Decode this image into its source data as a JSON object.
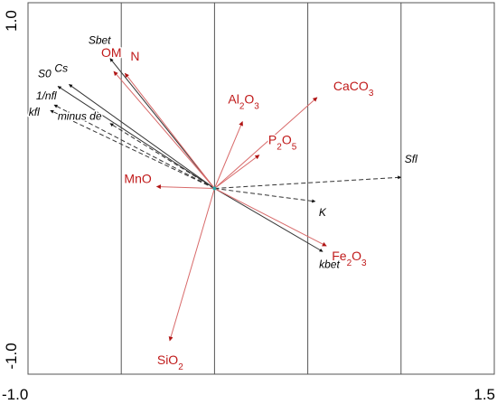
{
  "chart_data": {
    "type": "biplot",
    "title": "",
    "xlabel": "",
    "ylabel": "",
    "xlim": [
      -1.0,
      1.5
    ],
    "ylim": [
      -1.0,
      1.0
    ],
    "x_tick_labels": [
      {
        "value": -1.0,
        "label": "-1.0"
      },
      {
        "value": 1.5,
        "label": "1.5"
      }
    ],
    "y_tick_labels": [
      {
        "value": 1.0,
        "label": "1.0"
      },
      {
        "value": -1.0,
        "label": "-1.0"
      }
    ],
    "gridlines_x": [
      -0.5,
      0.0,
      0.5,
      1.0
    ],
    "grid": true,
    "colors": {
      "response": "#c01a1a",
      "environmental": "#000000",
      "axis": "#555555"
    },
    "response_vectors": [
      {
        "label": "OM",
        "x": -0.54,
        "y": 0.63
      },
      {
        "label": "N",
        "x": -0.48,
        "y": 0.62
      },
      {
        "label": "CaCO",
        "sub": "3",
        "x": 0.55,
        "y": 0.49
      },
      {
        "label": "Al",
        "sub": "2",
        "suffix": "O",
        "sub2": "3",
        "x": 0.15,
        "y": 0.36
      },
      {
        "label": "P",
        "sub": "2",
        "suffix": "O",
        "sub2": "5",
        "x": 0.24,
        "y": 0.18
      },
      {
        "label": "MnO",
        "x": -0.31,
        "y": 0.01
      },
      {
        "label": "Fe",
        "sub": "2",
        "suffix": "O",
        "sub2": "3",
        "x": 0.6,
        "y": -0.31
      },
      {
        "label": "SiO",
        "sub": "2",
        "x": -0.24,
        "y": -0.82
      }
    ],
    "environmental_vectors": [
      {
        "label": "Sbet",
        "x": -0.56,
        "y": 0.7,
        "style": "solid"
      },
      {
        "label": "Cs",
        "x": -0.78,
        "y": 0.56,
        "style": "solid"
      },
      {
        "label": "S0",
        "x": -0.84,
        "y": 0.55,
        "style": "solid"
      },
      {
        "label": "1/nfl",
        "x": -0.86,
        "y": 0.45,
        "style": "dashed"
      },
      {
        "label": "kfl",
        "x": -0.88,
        "y": 0.42,
        "style": "dashed"
      },
      {
        "label": "minus de",
        "x": -0.56,
        "y": 0.35,
        "style": "dashed"
      },
      {
        "label": "Sfl",
        "x": 1.0,
        "y": 0.06,
        "style": "dashed"
      },
      {
        "label": "K",
        "x": 0.54,
        "y": -0.07,
        "style": "dashed"
      },
      {
        "label": "kbet",
        "x": 0.58,
        "y": -0.34,
        "style": "solid"
      }
    ]
  }
}
